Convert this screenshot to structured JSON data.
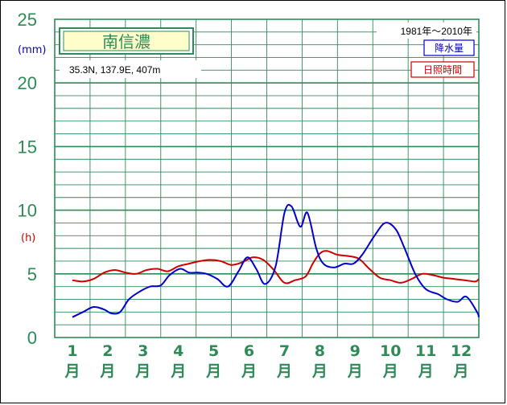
{
  "chart_data": {
    "type": "line",
    "station": "南信濃",
    "location": "35.3N,  137.9E,  407m",
    "period": "1981年〜2010年",
    "y_units": [
      "(mm)",
      "(h)"
    ],
    "y_ticks": [
      "0",
      "5",
      "10",
      "15",
      "20",
      "25"
    ],
    "ylim": [
      0,
      25
    ],
    "x_tick_labels": [
      "1",
      "2",
      "3",
      "4",
      "5",
      "6",
      "7",
      "8",
      "9",
      "10",
      "11",
      "12"
    ],
    "x_tick_unit": "月",
    "grid": true,
    "legend_position": "top-right",
    "series": [
      {
        "name": "降水量",
        "color": "#0000cc",
        "x": [
          0.0,
          0.3,
          0.6,
          0.9,
          1.1,
          1.35,
          1.6,
          1.9,
          2.2,
          2.5,
          2.75,
          3.05,
          3.3,
          3.55,
          3.8,
          4.1,
          4.4,
          4.7,
          4.95,
          5.2,
          5.45,
          5.75,
          6.0,
          6.2,
          6.45,
          6.65,
          6.9,
          7.1,
          7.4,
          7.7,
          7.95,
          8.2,
          8.55,
          8.85,
          9.15,
          9.4,
          9.7,
          10.0,
          10.35,
          10.6,
          10.9,
          11.15,
          11.45,
          11.7
        ],
        "values": [
          1.6,
          2.0,
          2.4,
          2.2,
          1.9,
          2.0,
          3.0,
          3.6,
          4.0,
          4.1,
          4.9,
          5.4,
          5.1,
          5.1,
          5.0,
          4.6,
          4.0,
          5.2,
          6.3,
          5.4,
          4.2,
          5.6,
          9.8,
          10.3,
          8.7,
          9.8,
          7.0,
          5.8,
          5.5,
          5.8,
          5.8,
          6.5,
          8.0,
          9.0,
          8.5,
          7.0,
          5.0,
          3.8,
          3.4,
          3.0,
          2.8,
          3.2,
          2.0,
          1.6
        ]
      },
      {
        "name": "日照時間",
        "color": "#cc0000",
        "x": [
          0.0,
          0.3,
          0.6,
          0.9,
          1.2,
          1.5,
          1.8,
          2.1,
          2.4,
          2.7,
          3.0,
          3.3,
          3.6,
          3.9,
          4.2,
          4.5,
          4.8,
          5.1,
          5.4,
          5.7,
          6.0,
          6.3,
          6.6,
          6.8,
          7.0,
          7.2,
          7.5,
          7.8,
          8.1,
          8.4,
          8.7,
          9.0,
          9.3,
          9.6,
          9.9,
          10.2,
          10.5,
          10.8,
          11.1,
          11.4,
          11.7
        ],
        "values": [
          4.5,
          4.4,
          4.6,
          5.1,
          5.3,
          5.1,
          5.0,
          5.3,
          5.4,
          5.2,
          5.6,
          5.8,
          6.0,
          6.1,
          6.0,
          5.7,
          5.9,
          6.3,
          6.1,
          5.3,
          4.3,
          4.5,
          4.8,
          5.8,
          6.6,
          6.8,
          6.5,
          6.4,
          6.2,
          5.4,
          4.7,
          4.5,
          4.3,
          4.6,
          5.0,
          4.9,
          4.7,
          4.6,
          4.5,
          4.4,
          4.6
        ]
      }
    ]
  }
}
